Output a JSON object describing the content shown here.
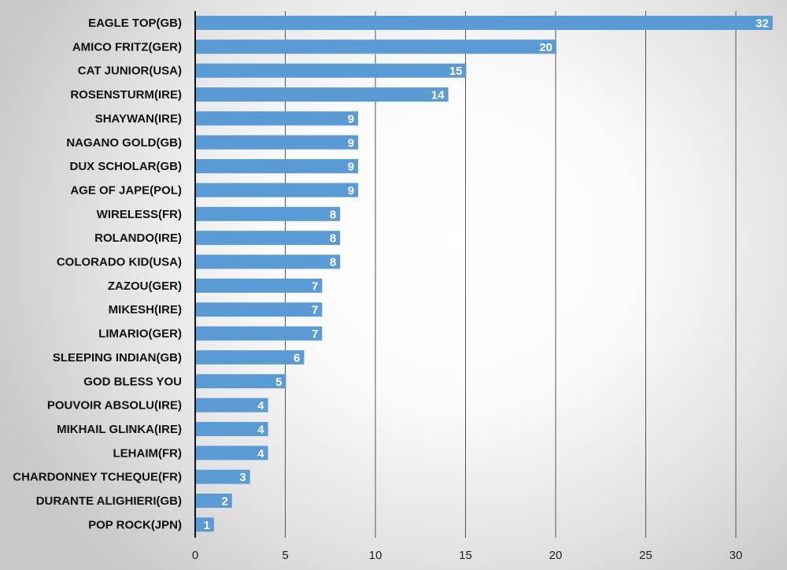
{
  "chart_data": {
    "type": "bar",
    "orientation": "horizontal",
    "title": "",
    "xlabel": "",
    "ylabel": "",
    "categories": [
      "EAGLE TOP(GB)",
      "AMICO FRITZ(GER)",
      "CAT JUNIOR(USA)",
      "ROSENSTURM(IRE)",
      "SHAYWAN(IRE)",
      "NAGANO GOLD(GB)",
      "DUX SCHOLAR(GB)",
      "AGE OF JAPE(POL)",
      "WIRELESS(FR)",
      "ROLANDO(IRE)",
      "COLORADO KID(USA)",
      "ZAZOU(GER)",
      "MIKESH(IRE)",
      "LIMARIO(GER)",
      "SLEEPING INDIAN(GB)",
      "GOD BLESS YOU",
      "POUVOIR ABSOLU(IRE)",
      "MIKHAIL GLINKA(IRE)",
      "LEHAIM(FR)",
      "CHARDONNEY TCHEQUE(FR)",
      "DURANTE ALIGHIERI(GB)",
      "POP ROCK(JPN)"
    ],
    "values": [
      32,
      20,
      15,
      14,
      9,
      9,
      9,
      9,
      8,
      8,
      8,
      7,
      7,
      7,
      6,
      5,
      4,
      4,
      4,
      3,
      2,
      1
    ],
    "data_labels": [
      "32",
      "20",
      "15",
      "14",
      "9",
      "9",
      "9",
      "9",
      "8",
      "8",
      "8",
      "7",
      "7",
      "7",
      "6",
      "5",
      "4",
      "4",
      "4",
      "3",
      "2",
      "1"
    ],
    "xlim": [
      0,
      32
    ],
    "xticks": [
      0,
      5,
      10,
      15,
      20,
      25,
      30
    ],
    "xtick_labels": [
      "0",
      "5",
      "10",
      "15",
      "20",
      "25",
      "30"
    ],
    "grid": true,
    "legend": "none",
    "colors": {
      "bar": "#5b9bd5",
      "gridline": "#555555",
      "axis": "#111111",
      "category_text": "#111111",
      "value_text": "#ffffff"
    }
  }
}
